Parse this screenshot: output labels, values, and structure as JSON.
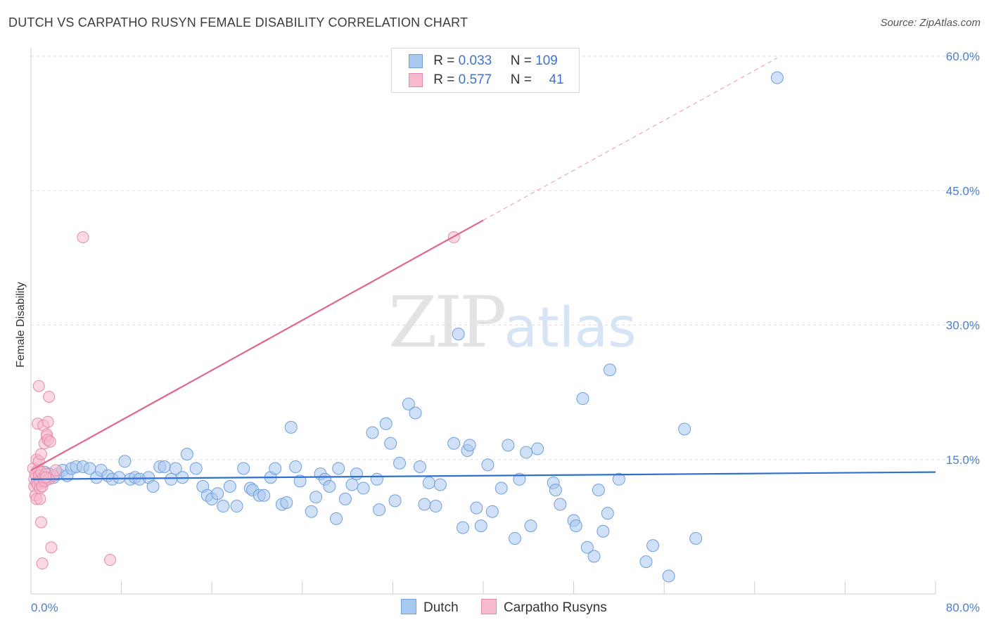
{
  "header": {
    "title": "DUTCH VS CARPATHO RUSYN FEMALE DISABILITY CORRELATION CHART",
    "source": "Source: ZipAtlas.com"
  },
  "watermark": {
    "zip": "ZIP",
    "atlas": "atlas"
  },
  "legend": {
    "rows": [
      {
        "r_label": "R =",
        "r_value": "0.033",
        "n_label": "N =",
        "n_value": "109",
        "color": "#a9c8f0"
      },
      {
        "r_label": "R =",
        "r_value": "0.577",
        "n_label": "N =",
        "n_value": "41",
        "color": "#f7b9cc"
      }
    ]
  },
  "bottom_legend": {
    "dutch": "Dutch",
    "rusyn": "Carpatho Rusyns"
  },
  "colors": {
    "dutch_fill": "#a9c8f0",
    "dutch_stroke": "#6f9fdc",
    "dutch_line": "#2f6fcf",
    "rusyn_fill": "#f7b9cc",
    "rusyn_stroke": "#e58aa8",
    "rusyn_line": "#e0668f",
    "tick_text": "#4a7fd0",
    "grid": "#dddddd"
  },
  "chart_data": {
    "type": "scatter",
    "title": "DUTCH VS CARPATHO RUSYN FEMALE DISABILITY CORRELATION CHART",
    "xlabel": "",
    "ylabel": "Female Disability",
    "xlim": [
      0,
      80
    ],
    "ylim": [
      0,
      60
    ],
    "x_tick_labels": [
      "0.0%",
      "80.0%"
    ],
    "y_ticks": [
      15,
      30,
      45,
      60
    ],
    "y_tick_labels": [
      "15.0%",
      "30.0%",
      "45.0%",
      "60.0%"
    ],
    "grid": true,
    "series": [
      {
        "name": "Dutch",
        "r": 0.033,
        "n": 109,
        "trend": {
          "x": [
            0,
            80
          ],
          "y": [
            12.8,
            13.6
          ]
        },
        "points": [
          [
            0.8,
            13.2
          ],
          [
            1.0,
            12.4
          ],
          [
            1.2,
            13.6
          ],
          [
            1.4,
            12.8
          ],
          [
            1.6,
            13.4
          ],
          [
            2.0,
            13.0
          ],
          [
            2.4,
            13.4
          ],
          [
            2.8,
            13.8
          ],
          [
            3.2,
            13.2
          ],
          [
            3.6,
            14.0
          ],
          [
            4.0,
            14.2
          ],
          [
            4.6,
            14.2
          ],
          [
            5.2,
            14.0
          ],
          [
            5.8,
            13.0
          ],
          [
            6.2,
            13.8
          ],
          [
            6.8,
            13.2
          ],
          [
            7.2,
            12.8
          ],
          [
            7.8,
            13.0
          ],
          [
            8.3,
            14.8
          ],
          [
            8.8,
            12.8
          ],
          [
            9.2,
            13.0
          ],
          [
            9.6,
            12.8
          ],
          [
            10.4,
            13.0
          ],
          [
            10.8,
            12.0
          ],
          [
            11.4,
            14.2
          ],
          [
            11.8,
            14.2
          ],
          [
            12.4,
            12.8
          ],
          [
            12.8,
            14.0
          ],
          [
            13.4,
            13.0
          ],
          [
            13.8,
            15.6
          ],
          [
            14.6,
            14.0
          ],
          [
            15.2,
            12.0
          ],
          [
            15.6,
            11.0
          ],
          [
            16.0,
            10.6
          ],
          [
            16.5,
            11.2
          ],
          [
            17.0,
            9.8
          ],
          [
            17.6,
            12.0
          ],
          [
            18.2,
            9.8
          ],
          [
            18.8,
            14.0
          ],
          [
            19.4,
            11.8
          ],
          [
            19.6,
            11.6
          ],
          [
            20.2,
            11.0
          ],
          [
            20.6,
            11.0
          ],
          [
            21.2,
            13.0
          ],
          [
            21.6,
            14.0
          ],
          [
            22.2,
            10.0
          ],
          [
            22.6,
            10.2
          ],
          [
            23.0,
            18.6
          ],
          [
            23.4,
            14.2
          ],
          [
            23.8,
            12.6
          ],
          [
            24.8,
            9.2
          ],
          [
            25.2,
            10.8
          ],
          [
            25.6,
            13.4
          ],
          [
            26.0,
            12.8
          ],
          [
            26.4,
            12.0
          ],
          [
            27.0,
            8.4
          ],
          [
            27.2,
            14.0
          ],
          [
            27.8,
            10.6
          ],
          [
            28.4,
            12.2
          ],
          [
            28.8,
            13.4
          ],
          [
            29.4,
            11.8
          ],
          [
            30.2,
            18.0
          ],
          [
            30.6,
            12.8
          ],
          [
            30.8,
            9.4
          ],
          [
            31.4,
            19.0
          ],
          [
            31.8,
            16.8
          ],
          [
            32.2,
            10.4
          ],
          [
            32.6,
            14.6
          ],
          [
            33.4,
            21.2
          ],
          [
            34.0,
            20.2
          ],
          [
            34.4,
            14.2
          ],
          [
            34.8,
            10.0
          ],
          [
            35.2,
            12.4
          ],
          [
            35.8,
            9.8
          ],
          [
            36.2,
            12.2
          ],
          [
            37.4,
            16.8
          ],
          [
            37.8,
            29.0
          ],
          [
            38.2,
            7.4
          ],
          [
            38.6,
            16.0
          ],
          [
            38.8,
            16.6
          ],
          [
            39.4,
            9.6
          ],
          [
            39.8,
            7.6
          ],
          [
            40.4,
            14.4
          ],
          [
            40.8,
            9.2
          ],
          [
            41.6,
            11.8
          ],
          [
            42.2,
            16.6
          ],
          [
            42.8,
            6.2
          ],
          [
            43.2,
            12.8
          ],
          [
            43.8,
            15.8
          ],
          [
            44.2,
            7.6
          ],
          [
            44.8,
            16.2
          ],
          [
            46.2,
            12.4
          ],
          [
            46.4,
            11.6
          ],
          [
            46.8,
            10.0
          ],
          [
            48.0,
            8.2
          ],
          [
            48.2,
            7.6
          ],
          [
            48.8,
            21.8
          ],
          [
            49.2,
            5.2
          ],
          [
            49.8,
            4.2
          ],
          [
            50.2,
            11.6
          ],
          [
            50.6,
            7.0
          ],
          [
            51.0,
            9.0
          ],
          [
            51.2,
            25.0
          ],
          [
            52.0,
            12.8
          ],
          [
            54.4,
            3.6
          ],
          [
            55.0,
            5.4
          ],
          [
            56.4,
            2.0
          ],
          [
            57.8,
            18.4
          ],
          [
            58.8,
            6.2
          ],
          [
            66.0,
            57.6
          ]
        ]
      },
      {
        "name": "Carpatho Rusyns",
        "r": 0.577,
        "n": 41,
        "trend": {
          "x": [
            0,
            40
          ],
          "y": [
            13.8,
            41.7
          ]
        },
        "trend_dashed": {
          "x": [
            40,
            66
          ],
          "y": [
            41.7,
            59.8
          ]
        },
        "points": [
          [
            0.2,
            14.0
          ],
          [
            0.3,
            12.0
          ],
          [
            0.3,
            12.8
          ],
          [
            0.4,
            11.0
          ],
          [
            0.4,
            13.4
          ],
          [
            0.5,
            10.6
          ],
          [
            0.5,
            12.4
          ],
          [
            0.5,
            15.0
          ],
          [
            0.6,
            13.8
          ],
          [
            0.6,
            12.2
          ],
          [
            0.6,
            19.0
          ],
          [
            0.7,
            13.2
          ],
          [
            0.7,
            14.8
          ],
          [
            0.7,
            23.2
          ],
          [
            0.8,
            11.8
          ],
          [
            0.8,
            12.6
          ],
          [
            0.8,
            10.6
          ],
          [
            0.9,
            13.6
          ],
          [
            0.9,
            8.0
          ],
          [
            0.9,
            15.6
          ],
          [
            1.0,
            12.0
          ],
          [
            1.0,
            3.4
          ],
          [
            1.1,
            13.0
          ],
          [
            1.1,
            18.8
          ],
          [
            1.2,
            12.6
          ],
          [
            1.2,
            16.8
          ],
          [
            1.3,
            13.4
          ],
          [
            1.4,
            17.6
          ],
          [
            1.4,
            17.8
          ],
          [
            1.5,
            17.2
          ],
          [
            1.5,
            19.2
          ],
          [
            1.6,
            22.0
          ],
          [
            1.6,
            12.8
          ],
          [
            1.7,
            17.0
          ],
          [
            1.8,
            5.2
          ],
          [
            2.0,
            13.2
          ],
          [
            2.2,
            13.8
          ],
          [
            4.6,
            39.8
          ],
          [
            7.0,
            3.8
          ],
          [
            37.4,
            39.8
          ],
          [
            1.3,
            13.0
          ]
        ]
      }
    ]
  }
}
